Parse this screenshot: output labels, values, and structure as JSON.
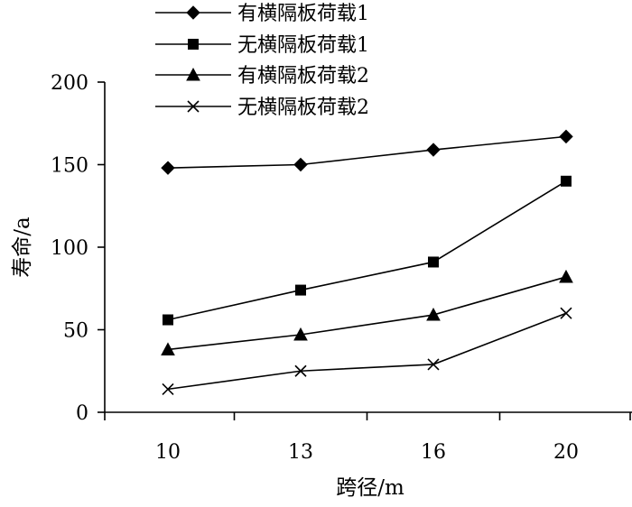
{
  "chart_data": {
    "type": "line",
    "xlabel": "跨径/m",
    "ylabel": "寿命/a",
    "x": [
      10,
      13,
      16,
      20
    ],
    "x_tick_labels": [
      "10",
      "13",
      "16",
      "20"
    ],
    "y_ticks": [
      0,
      50,
      100,
      150,
      200
    ],
    "ylim": [
      0,
      200
    ],
    "grid": false,
    "legend_position": "top",
    "series": [
      {
        "name": "有横隔板荷载1",
        "marker": "diamond",
        "values": [
          148,
          150,
          159,
          167
        ]
      },
      {
        "name": "无横隔板荷载1",
        "marker": "square",
        "values": [
          56,
          74,
          91,
          140
        ]
      },
      {
        "name": "有横隔板荷载2",
        "marker": "triangle",
        "values": [
          38,
          47,
          59,
          82
        ]
      },
      {
        "name": "无横隔板荷载2",
        "marker": "x",
        "values": [
          14,
          25,
          29,
          60
        ]
      }
    ]
  }
}
